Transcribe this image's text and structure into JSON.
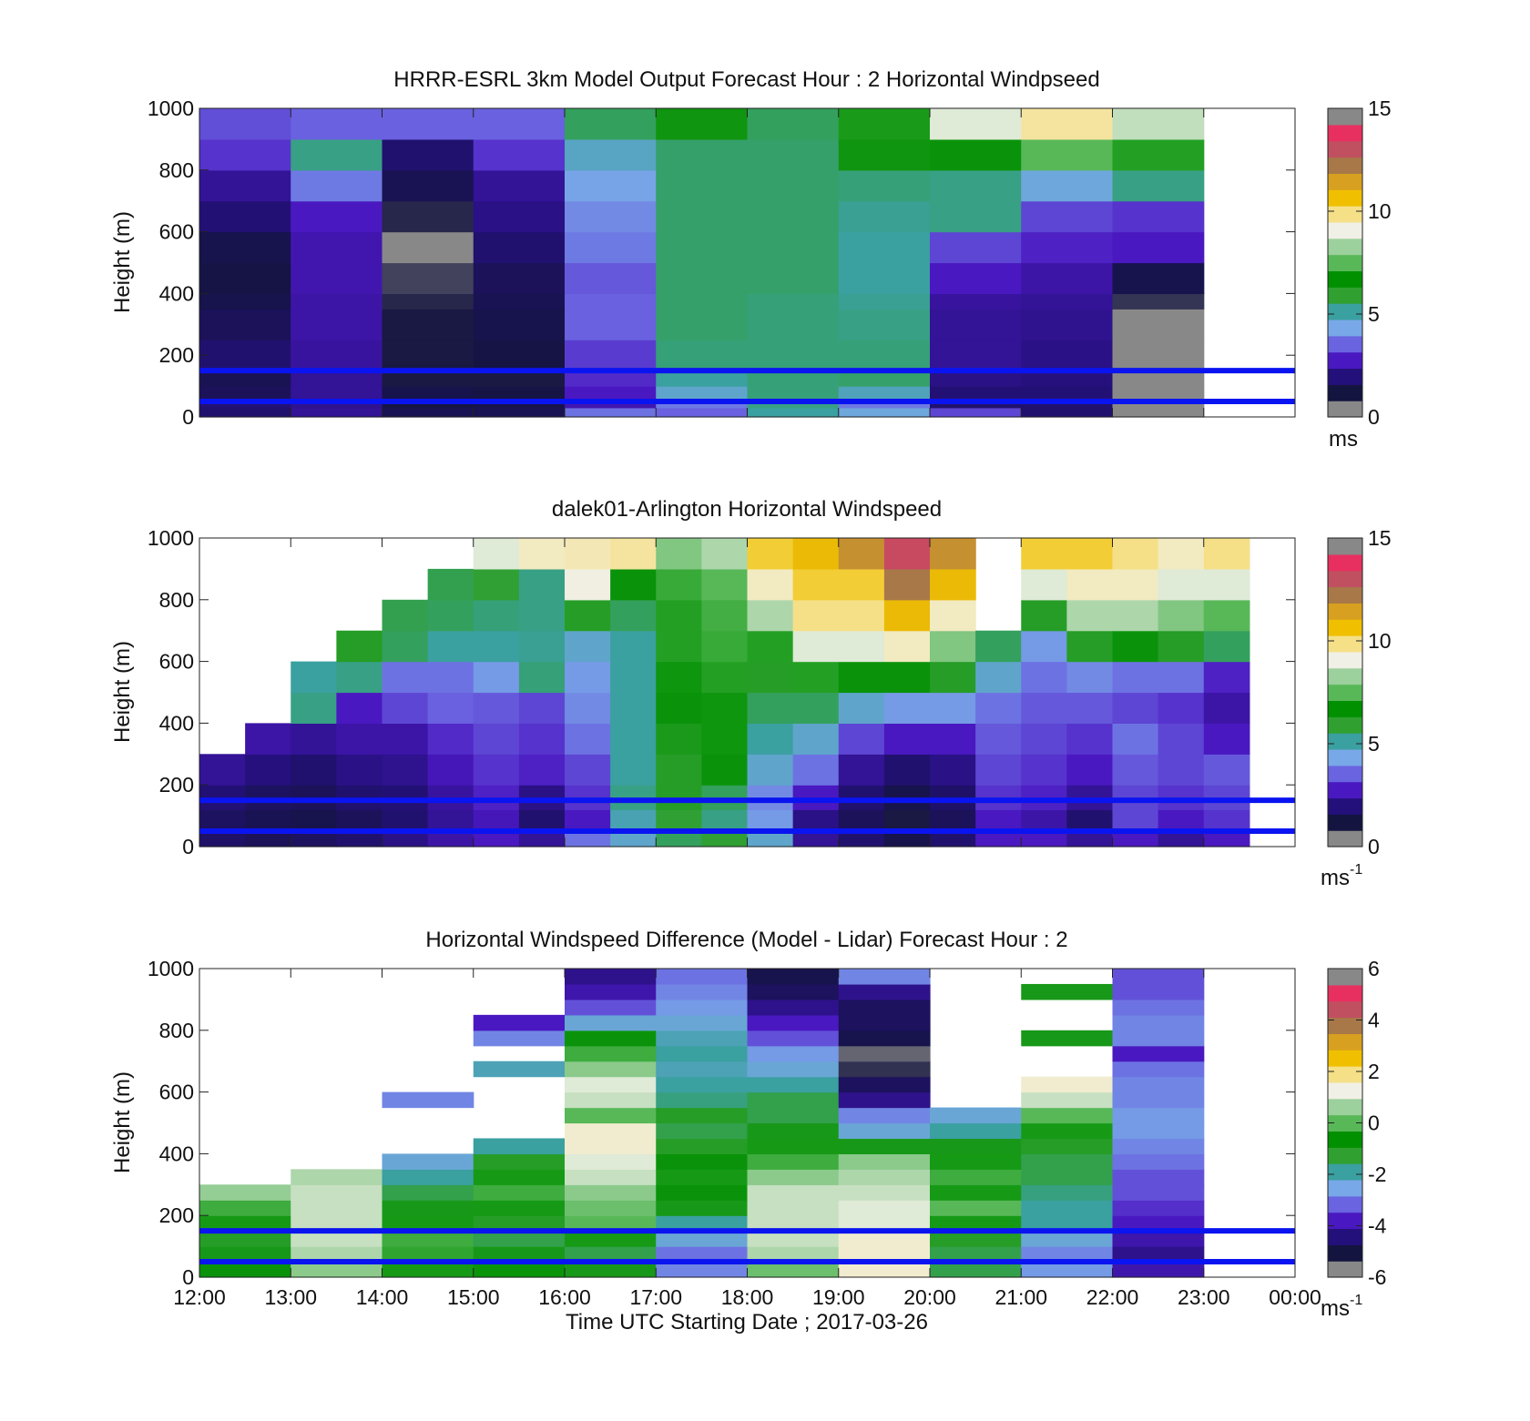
{
  "colors": {
    "overlay_lines": "#0a14f0",
    "windspeed_colormap": [
      "#888888",
      "#141440",
      "#24107a",
      "#4a18c0",
      "#6a64e0",
      "#78a8e8",
      "#3aa0a0",
      "#30a030",
      "#009000",
      "#58b858",
      "#9cd09c",
      "#f0f0e6",
      "#f5e088",
      "#f0c000",
      "#d8a020",
      "#a87848",
      "#c05060",
      "#e83060",
      "#888888"
    ],
    "difference_colormap": [
      "#888888",
      "#141440",
      "#24107a",
      "#4a18c0",
      "#6a64e0",
      "#78a8e8",
      "#3aa0a0",
      "#30a030",
      "#009000",
      "#58b858",
      "#9cd09c",
      "#f0f0e6",
      "#f5e088",
      "#f0c000",
      "#d8a020",
      "#a87848",
      "#c05060",
      "#e83060",
      "#888888"
    ]
  },
  "x_axis": {
    "tick_labels": [
      "12:00",
      "13:00",
      "14:00",
      "15:00",
      "16:00",
      "17:00",
      "18:00",
      "19:00",
      "20:00",
      "21:00",
      "22:00",
      "23:00",
      "00:00"
    ],
    "label": "Time UTC  Starting Date ; 2017-03-26"
  },
  "chart_data": [
    {
      "type": "heatmap",
      "title": "HRRR-ESRL 3km Model Output   Forecast Hour : 2 Horizontal Windpseed",
      "ylabel": "Height (m)",
      "ylim": [
        0,
        1000
      ],
      "yticks": [
        "0",
        "200",
        "400",
        "600",
        "800",
        "1000"
      ],
      "colorbar": {
        "ticks": [
          "0",
          "5",
          "10",
          "15"
        ],
        "range": [
          0,
          15
        ],
        "unit": "ms"
      },
      "hline_heights": [
        50,
        150
      ],
      "x": [
        "12:00",
        "13:00",
        "14:00",
        "15:00",
        "16:00",
        "17:00",
        "18:00",
        "19:00",
        "20:00",
        "21:00",
        "22:00"
      ],
      "height_bins": [
        0,
        30,
        60,
        100,
        150,
        250,
        350,
        400,
        500,
        600,
        700,
        800,
        900,
        1000
      ],
      "values": [
        [
          1.5,
          1.6,
          1.2,
          1.1,
          1.5,
          1.2,
          1.0,
          0.9,
          1.0,
          1.6,
          2.0,
          2.8,
          3.1
        ],
        [
          2.0,
          1.9,
          2.0,
          2.0,
          2.1,
          2.2,
          2.2,
          2.3,
          2.3,
          2.5,
          3.6,
          5.2,
          3.3
        ],
        [
          1.1,
          0.9,
          1.0,
          0.8,
          0.8,
          0.8,
          0.7,
          0.5,
          0,
          0.7,
          1.1,
          1.5,
          3.3
        ],
        [
          1.1,
          1.0,
          0.9,
          0.8,
          0.9,
          1.0,
          1.1,
          1.2,
          1.5,
          1.8,
          2.0,
          2.8,
          3.3
        ],
        [
          3.5,
          2.3,
          2.5,
          2.7,
          2.9,
          3.3,
          3.3,
          3.2,
          3.6,
          3.8,
          4.1,
          4.6,
          5.5
        ],
        [
          3.3,
          3.6,
          4.5,
          5.0,
          5.3,
          5.4,
          5.4,
          5.4,
          5.4,
          5.4,
          5.4,
          5.4,
          6.4
        ],
        [
          5.0,
          5.2,
          5.3,
          5.3,
          5.3,
          5.3,
          5.3,
          5.4,
          5.4,
          5.4,
          5.4,
          5.4,
          5.5
        ],
        [
          4.3,
          3.6,
          4.7,
          5.4,
          5.3,
          5.2,
          5.1,
          5.0,
          5.0,
          5.1,
          5.3,
          6.4,
          6.9
        ],
        [
          3.0,
          1.5,
          1.6,
          1.8,
          2.0,
          2.0,
          2.1,
          2.5,
          3.0,
          5.2,
          5.2,
          6.5,
          9.0
        ],
        [
          1.5,
          1.5,
          1.6,
          1.7,
          1.8,
          1.9,
          2.0,
          2.2,
          2.6,
          3.0,
          4.3,
          7.5,
          9.8
        ],
        [
          0,
          0,
          0,
          0,
          0,
          0,
          0.6,
          1.0,
          2.5,
          2.8,
          5.2,
          7.0,
          8.7
        ]
      ]
    },
    {
      "type": "heatmap",
      "title": "dalek01-Arlington  Horizontal Windspeed",
      "ylabel": "Height (m)",
      "ylim": [
        0,
        1000
      ],
      "yticks": [
        "0",
        "200",
        "400",
        "600",
        "800",
        "1000"
      ],
      "colorbar": {
        "ticks": [
          "0",
          "5",
          "10",
          "15"
        ],
        "range": [
          0,
          15
        ],
        "unit": "ms",
        "unit_exp": "-1"
      },
      "hline_heights": [
        50,
        150
      ],
      "x": [
        "12:00",
        "12:30",
        "13:00",
        "13:30",
        "14:00",
        "14:30",
        "15:00",
        "15:30",
        "16:00",
        "16:30",
        "17:00",
        "17:30",
        "18:00",
        "18:30",
        "19:00",
        "19:30",
        "20:00",
        "20:30",
        "21:00",
        "21:30",
        "22:00",
        "22:30",
        "23:00"
      ],
      "height_bins": [
        0,
        60,
        120,
        200,
        300,
        400,
        500,
        600,
        700,
        800,
        900,
        1000
      ],
      "values": [
        [
          1.4,
          1.3,
          1.6,
          2.0,
          null,
          null,
          null,
          null,
          null,
          null,
          null
        ],
        [
          1.2,
          1.1,
          1.3,
          1.7,
          2.2,
          null,
          null,
          null,
          null,
          null,
          null
        ],
        [
          1.3,
          1.0,
          1.2,
          1.5,
          2.0,
          5.2,
          5.0,
          null,
          null,
          null,
          null
        ],
        [
          1.5,
          1.2,
          1.5,
          1.8,
          2.2,
          2.5,
          5.2,
          6.0,
          null,
          null,
          null
        ],
        [
          1.8,
          1.5,
          1.6,
          1.9,
          2.2,
          3.0,
          3.5,
          5.5,
          5.6,
          null,
          null
        ],
        [
          2.2,
          2.0,
          2.1,
          2.4,
          2.7,
          3.3,
          3.5,
          5.0,
          5.5,
          5.6,
          null
        ],
        [
          2.5,
          2.4,
          2.6,
          2.8,
          3.0,
          3.2,
          4.0,
          5.0,
          5.3,
          5.8,
          9.0
        ],
        [
          2.0,
          1.5,
          1.8,
          2.6,
          2.8,
          3.0,
          5.3,
          5.1,
          5.2,
          5.2,
          9.5
        ],
        [
          3.5,
          2.5,
          2.8,
          3.0,
          3.5,
          3.8,
          4.0,
          4.5,
          6.0,
          9.2,
          9.6
        ],
        [
          4.5,
          4.8,
          5.2,
          5.0,
          5.0,
          5.0,
          5.0,
          5.0,
          5.5,
          6.5,
          9.8
        ],
        [
          5.5,
          5.8,
          6.0,
          6.0,
          6.2,
          6.5,
          6.8,
          7.0,
          7.0,
          7.2,
          8.0
        ],
        [
          5.8,
          5.2,
          5.5,
          6.5,
          6.8,
          6.8,
          7.0,
          7.2,
          7.3,
          7.5,
          8.5
        ],
        [
          4.5,
          4.0,
          3.8,
          4.5,
          5.0,
          5.5,
          6.0,
          7.0,
          8.5,
          9.5,
          10.5
        ],
        [
          2.0,
          1.8,
          2.5,
          3.5,
          4.5,
          5.5,
          7.0,
          9.0,
          10.0,
          10.5,
          11.0
        ],
        [
          1.5,
          1.2,
          1.5,
          2.0,
          3.0,
          4.5,
          6.5,
          9.0,
          10.0,
          10.5,
          12.0
        ],
        [
          1.0,
          0.8,
          1.0,
          1.5,
          2.5,
          4.0,
          6.5,
          9.5,
          11.0,
          12.5,
          13.5
        ],
        [
          1.5,
          1.2,
          1.4,
          1.8,
          2.5,
          4.0,
          6.0,
          8.0,
          9.5,
          11.0,
          12.0
        ],
        [
          2.5,
          2.5,
          2.8,
          3.0,
          3.2,
          3.5,
          4.5,
          5.5,
          null,
          null,
          null
        ],
        [
          2.5,
          2.2,
          2.6,
          2.8,
          3.0,
          3.2,
          3.5,
          4.0,
          6.0,
          9.0,
          10.5
        ],
        [
          2.0,
          1.5,
          2.0,
          2.5,
          2.8,
          3.2,
          3.8,
          6.0,
          8.5,
          9.5,
          10.5
        ],
        [
          2.5,
          3.0,
          3.0,
          3.2,
          3.5,
          3.0,
          3.5,
          6.5,
          8.5,
          9.5,
          10.0
        ],
        [
          2.0,
          2.5,
          2.8,
          3.0,
          3.0,
          2.8,
          3.5,
          6.0,
          8.0,
          9.0,
          9.5
        ],
        [
          2.5,
          2.8,
          3.0,
          3.2,
          2.5,
          2.2,
          2.6,
          5.5,
          7.5,
          9.0,
          10.0
        ]
      ]
    },
    {
      "type": "heatmap",
      "title": "Horizontal Windspeed Difference (Model - Lidar) Forecast Hour : 2",
      "ylabel": "Height (m)",
      "ylim": [
        0,
        1000
      ],
      "yticks": [
        "0",
        "200",
        "400",
        "600",
        "800",
        "1000"
      ],
      "xlabel": "Time UTC  Starting Date ; 2017-03-26",
      "colorbar": {
        "ticks": [
          "-6",
          "-4",
          "-2",
          "0",
          "2",
          "4"
        ],
        "extra_top_tick": "6",
        "range": [
          -6,
          6
        ],
        "unit": "ms",
        "unit_exp": "-1"
      },
      "hline_heights": [
        50,
        150
      ],
      "x": [
        "12:00",
        "13:00",
        "14:00",
        "15:00",
        "16:00",
        "17:00",
        "18:00",
        "19:00",
        "20:00",
        "21:00",
        "22:00"
      ],
      "height_bins": [
        0,
        50,
        100,
        150,
        200,
        250,
        300,
        350,
        400,
        450,
        500,
        550,
        600,
        650,
        700,
        750,
        800,
        850,
        900,
        950,
        1000
      ],
      "values": [
        [
          -0.8,
          -1.0,
          -1.2,
          -0.5,
          -0.2,
          0.6,
          null,
          null,
          null,
          null,
          null,
          null,
          null,
          null,
          null,
          null,
          null,
          null,
          null,
          null
        ],
        [
          0.5,
          0.8,
          1.0,
          1.0,
          1.0,
          1.0,
          0.8,
          null,
          null,
          null,
          null,
          null,
          null,
          null,
          null,
          null,
          null,
          null,
          null,
          null
        ],
        [
          -0.5,
          -0.3,
          -0.2,
          -0.5,
          -1.0,
          -1.5,
          -2.0,
          -2.5,
          null,
          null,
          null,
          -3.0,
          null,
          null,
          null,
          null,
          null,
          null,
          null,
          null
        ],
        [
          -0.6,
          -1.0,
          -1.5,
          -1.2,
          -0.5,
          -0.2,
          -0.5,
          -1.2,
          -2.0,
          null,
          null,
          null,
          null,
          -2.2,
          null,
          -3.0,
          -4.0,
          null,
          null,
          null
        ],
        [
          -1.0,
          -1.5,
          -0.5,
          0.0,
          0.2,
          0.5,
          1.0,
          1.2,
          1.5,
          1.5,
          0.0,
          1.0,
          1.2,
          0.5,
          -0.2,
          -0.8,
          -2.5,
          -3.5,
          -4.2,
          -4.5
        ],
        [
          -3.0,
          -3.2,
          -2.5,
          -2.0,
          -1.0,
          -0.8,
          -0.5,
          -0.8,
          -1.2,
          -1.5,
          -1.2,
          -1.8,
          -2.0,
          -2.2,
          -2.0,
          -2.2,
          -2.5,
          -2.8,
          -3.0,
          -3.2
        ],
        [
          0.2,
          0.8,
          1.0,
          1.0,
          1.0,
          1.0,
          0.5,
          -0.2,
          -0.5,
          -1.0,
          -1.5,
          -1.5,
          -2.0,
          -2.5,
          -2.8,
          -3.5,
          -4.0,
          -4.5,
          -5.0,
          -5.2
        ],
        [
          1.5,
          1.5,
          1.5,
          1.2,
          1.2,
          1.0,
          0.8,
          0.5,
          -1.0,
          -2.5,
          -3.0,
          -4.5,
          -5.0,
          -5.5,
          -5.8,
          -5.2,
          -5.0,
          -5.0,
          -4.5,
          -3.0
        ],
        [
          -1.5,
          -1.5,
          -1.2,
          -0.5,
          0.0,
          -0.5,
          -0.2,
          -0.5,
          -1.0,
          -2.0,
          -2.5,
          null,
          null,
          null,
          null,
          null,
          null,
          null,
          null,
          null
        ],
        [
          -2.8,
          -3.0,
          -2.5,
          -2.0,
          -2.0,
          -1.8,
          -1.5,
          -1.5,
          -1.2,
          -0.5,
          0.0,
          1.0,
          1.5,
          null,
          null,
          -1.0,
          null,
          null,
          -1.0,
          null
        ],
        [
          -4.2,
          -4.5,
          -4.2,
          -4.0,
          -3.8,
          -3.5,
          -3.5,
          -3.2,
          -3.0,
          -2.8,
          -2.8,
          -3.0,
          -3.0,
          -3.2,
          -4.0,
          -3.0,
          -3.0,
          -3.2,
          -3.5,
          -3.5
        ]
      ]
    }
  ]
}
